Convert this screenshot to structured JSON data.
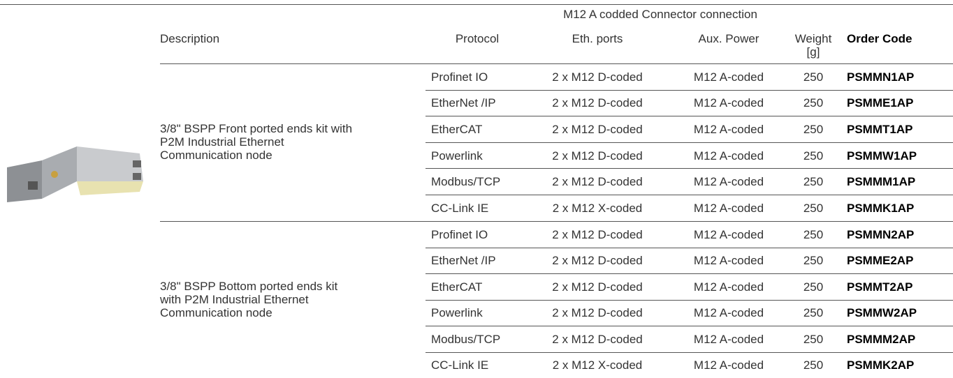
{
  "header": {
    "group_title": "M12 A codded Connector connection",
    "columns": [
      "Description",
      "Protocol",
      "Eth. ports",
      "Aux. Power",
      "Weight [g]",
      "Order Code"
    ]
  },
  "groups": [
    {
      "description": [
        "3/8\" BSPP Front ported ends kit with",
        "P2M Industrial Ethernet",
        "Communication node"
      ],
      "rows": [
        [
          "Profinet IO",
          "2 x M12 D-coded",
          "M12 A-coded",
          250,
          "PSMMN1AP"
        ],
        [
          "EtherNet /IP",
          "2 x M12 D-coded",
          "M12 A-coded",
          250,
          "PSMME1AP"
        ],
        [
          "EtherCAT",
          "2 x M12 D-coded",
          "M12 A-coded",
          250,
          "PSMMT1AP"
        ],
        [
          "Powerlink",
          "2 x M12 D-coded",
          "M12 A-coded",
          250,
          "PSMMW1AP"
        ],
        [
          "Modbus/TCP",
          "2 x M12 D-coded",
          "M12 A-coded",
          250,
          "PSMMM1AP"
        ],
        [
          "CC-Link IE",
          "2 x M12 X-coded",
          "M12 A-coded",
          250,
          "PSMMK1AP"
        ]
      ]
    },
    {
      "description": [
        "3/8\" BSPP Bottom ported ends kit",
        "with P2M Industrial Ethernet",
        "Communication node"
      ],
      "rows": [
        [
          "Profinet IO",
          "2 x M12 D-coded",
          "M12 A-coded",
          250,
          "PSMMN2AP"
        ],
        [
          "EtherNet /IP",
          "2 x M12 D-coded",
          "M12 A-coded",
          250,
          "PSMME2AP"
        ],
        [
          "EtherCAT",
          "2 x M12 D-coded",
          "M12 A-coded",
          250,
          "PSMMT2AP"
        ],
        [
          "Powerlink",
          "2 x M12 D-coded",
          "M12 A-coded",
          250,
          "PSMMW2AP"
        ],
        [
          "Modbus/TCP",
          "2 x M12 D-coded",
          "M12 A-coded",
          250,
          "PSMMM2AP"
        ],
        [
          "CC-Link IE",
          "2 x M12 X-coded",
          "M12 A-coded",
          250,
          "PSMMK2AP"
        ]
      ]
    }
  ]
}
